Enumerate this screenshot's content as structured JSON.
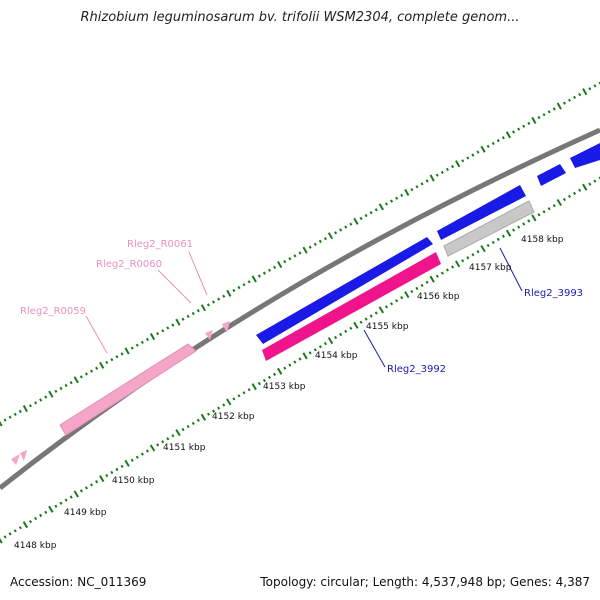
{
  "title": "Rhizobium leguminosarum bv. trifolii WSM2304, complete genom...",
  "footer": {
    "accession": "Accession: NC_011369",
    "summary": "Topology: circular; Length: 4,537,948 bp; Genes: 4,387"
  },
  "colors": {
    "forward_gene": "#1a1ae6",
    "reverse_cds": "#f0148c",
    "rna": "#f4a6c9",
    "pseudo": "#c8c8c8",
    "backbone": "#777777",
    "ticks": "#1a7a1a",
    "label_rna": "#e991bb",
    "label_gene": "#1a1ab0"
  },
  "scale_labels": [
    "4148 kbp",
    "4149 kbp",
    "4150 kbp",
    "4151 kbp",
    "4152 kbp",
    "4153 kbp",
    "4154 kbp",
    "4155 kbp",
    "4156 kbp",
    "4157 kbp",
    "4158 kbp"
  ],
  "feature_labels": {
    "r0061": "Rleg2_R0061",
    "r0060": "Rleg2_R0060",
    "r0059": "Rleg2_R0059",
    "g3992": "Rleg2_3992",
    "g3993": "Rleg2_3993"
  }
}
